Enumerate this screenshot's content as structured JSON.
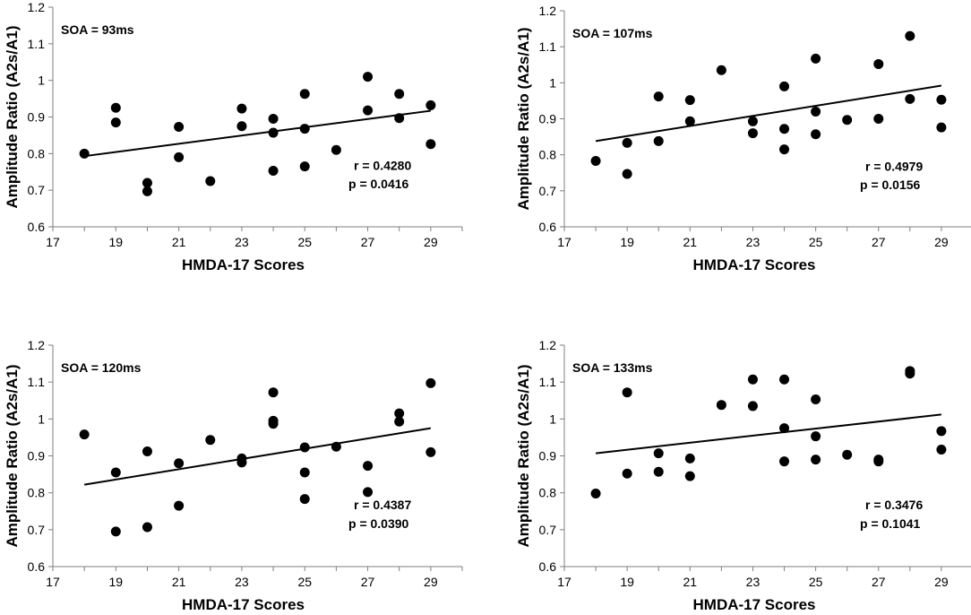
{
  "chart_data": [
    {
      "type": "scatter",
      "soa_label": "SOA = 93ms",
      "r_label": "r = 0.4280",
      "p_label": "p = 0.0416",
      "xlabel": "HMDA-17 Scores",
      "ylabel": "Amplitude Ratio (A2s/A1)",
      "xlim": [
        17,
        30
      ],
      "ylim": [
        0.6,
        1.2
      ],
      "xticks": [
        17,
        19,
        21,
        23,
        25,
        27,
        29
      ],
      "yticks": [
        "0.6",
        "0.7",
        "0.8",
        "0.9",
        "1",
        "1.1",
        "1.2"
      ],
      "points": [
        [
          18,
          0.8
        ],
        [
          19,
          0.925
        ],
        [
          19,
          0.885
        ],
        [
          20,
          0.72
        ],
        [
          20,
          0.697
        ],
        [
          21,
          0.873
        ],
        [
          21,
          0.79
        ],
        [
          22,
          0.725
        ],
        [
          23,
          0.923
        ],
        [
          23,
          0.875
        ],
        [
          24,
          0.895
        ],
        [
          24,
          0.857
        ],
        [
          24,
          0.753
        ],
        [
          25,
          0.963
        ],
        [
          25,
          0.868
        ],
        [
          25,
          0.765
        ],
        [
          26,
          0.81
        ],
        [
          27,
          1.01
        ],
        [
          27,
          0.918
        ],
        [
          28,
          0.963
        ],
        [
          28,
          0.897
        ],
        [
          29,
          0.932
        ],
        [
          29,
          0.826
        ]
      ],
      "trend": [
        [
          18,
          0.793
        ],
        [
          29,
          0.917
        ]
      ]
    },
    {
      "type": "scatter",
      "soa_label": "SOA = 107ms",
      "r_label": "r = 0.4979",
      "p_label": "p = 0.0156",
      "xlabel": "HMDA-17 Scores",
      "ylabel": "Amplitude Ratio (A2s/A1)",
      "xlim": [
        17,
        30
      ],
      "ylim": [
        0.6,
        1.2
      ],
      "xticks": [
        17,
        19,
        21,
        23,
        25,
        27,
        29
      ],
      "yticks": [
        "0.6",
        "0.7",
        "0.8",
        "0.9",
        "1",
        "1.1",
        "1.2"
      ],
      "points": [
        [
          18,
          0.783
        ],
        [
          19,
          0.833
        ],
        [
          19,
          0.747
        ],
        [
          20,
          0.962
        ],
        [
          20,
          0.838
        ],
        [
          21,
          0.952
        ],
        [
          21,
          0.893
        ],
        [
          22,
          1.035
        ],
        [
          23,
          0.893
        ],
        [
          23,
          0.86
        ],
        [
          24,
          0.99
        ],
        [
          24,
          0.872
        ],
        [
          24,
          0.815
        ],
        [
          25,
          1.067
        ],
        [
          25,
          0.92
        ],
        [
          25,
          0.857
        ],
        [
          26,
          0.897
        ],
        [
          27,
          1.052
        ],
        [
          27,
          0.9
        ],
        [
          28,
          1.13
        ],
        [
          28,
          0.955
        ],
        [
          29,
          0.953
        ],
        [
          29,
          0.876
        ]
      ],
      "trend": [
        [
          18,
          0.838
        ],
        [
          29,
          0.992
        ]
      ]
    },
    {
      "type": "scatter",
      "soa_label": "SOA = 120ms",
      "r_label": "r = 0.4387",
      "p_label": "p = 0.0390",
      "xlabel": "HMDA-17 Scores",
      "ylabel": "Amplitude Ratio (A2s/A1)",
      "xlim": [
        17,
        30
      ],
      "ylim": [
        0.6,
        1.2
      ],
      "xticks": [
        17,
        19,
        21,
        23,
        25,
        27,
        29
      ],
      "yticks": [
        "0.6",
        "0.7",
        "0.8",
        "0.9",
        "1",
        "1.1",
        "1.2"
      ],
      "points": [
        [
          18,
          0.958
        ],
        [
          19,
          0.855
        ],
        [
          19,
          0.695
        ],
        [
          20,
          0.912
        ],
        [
          20,
          0.707
        ],
        [
          21,
          0.88
        ],
        [
          21,
          0.765
        ],
        [
          22,
          0.943
        ],
        [
          23,
          0.893
        ],
        [
          23,
          0.882
        ],
        [
          24,
          1.072
        ],
        [
          24,
          0.995
        ],
        [
          24,
          0.987
        ],
        [
          25,
          0.923
        ],
        [
          25,
          0.855
        ],
        [
          25,
          0.783
        ],
        [
          26,
          0.925
        ],
        [
          27,
          0.873
        ],
        [
          27,
          0.802
        ],
        [
          28,
          1.015
        ],
        [
          28,
          0.993
        ],
        [
          29,
          1.097
        ],
        [
          29,
          0.91
        ]
      ],
      "trend": [
        [
          18,
          0.822
        ],
        [
          29,
          0.975
        ]
      ]
    },
    {
      "type": "scatter",
      "soa_label": "SOA = 133ms",
      "r_label": "r = 0.3476",
      "p_label": "p = 0.1041",
      "xlabel": "HMDA-17 Scores",
      "ylabel": "Amplitude Ratio (A2s/A1)",
      "xlim": [
        17,
        30
      ],
      "ylim": [
        0.6,
        1.2
      ],
      "xticks": [
        17,
        19,
        21,
        23,
        25,
        27,
        29
      ],
      "yticks": [
        "0.6",
        "0.7",
        "0.8",
        "0.9",
        "1",
        "1.1",
        "1.2"
      ],
      "points": [
        [
          18,
          0.798
        ],
        [
          19,
          1.072
        ],
        [
          19,
          0.852
        ],
        [
          20,
          0.907
        ],
        [
          20,
          0.857
        ],
        [
          21,
          0.893
        ],
        [
          21,
          0.845
        ],
        [
          22,
          1.038
        ],
        [
          23,
          1.107
        ],
        [
          23,
          1.035
        ],
        [
          24,
          1.107
        ],
        [
          24,
          0.975
        ],
        [
          24,
          0.885
        ],
        [
          25,
          1.053
        ],
        [
          25,
          0.953
        ],
        [
          25,
          0.89
        ],
        [
          26,
          0.903
        ],
        [
          27,
          0.89
        ],
        [
          27,
          0.885
        ],
        [
          28,
          1.13
        ],
        [
          28,
          1.123
        ],
        [
          29,
          0.967
        ],
        [
          29,
          0.917
        ]
      ],
      "trend": [
        [
          18,
          0.907
        ],
        [
          29,
          1.012
        ]
      ]
    }
  ]
}
